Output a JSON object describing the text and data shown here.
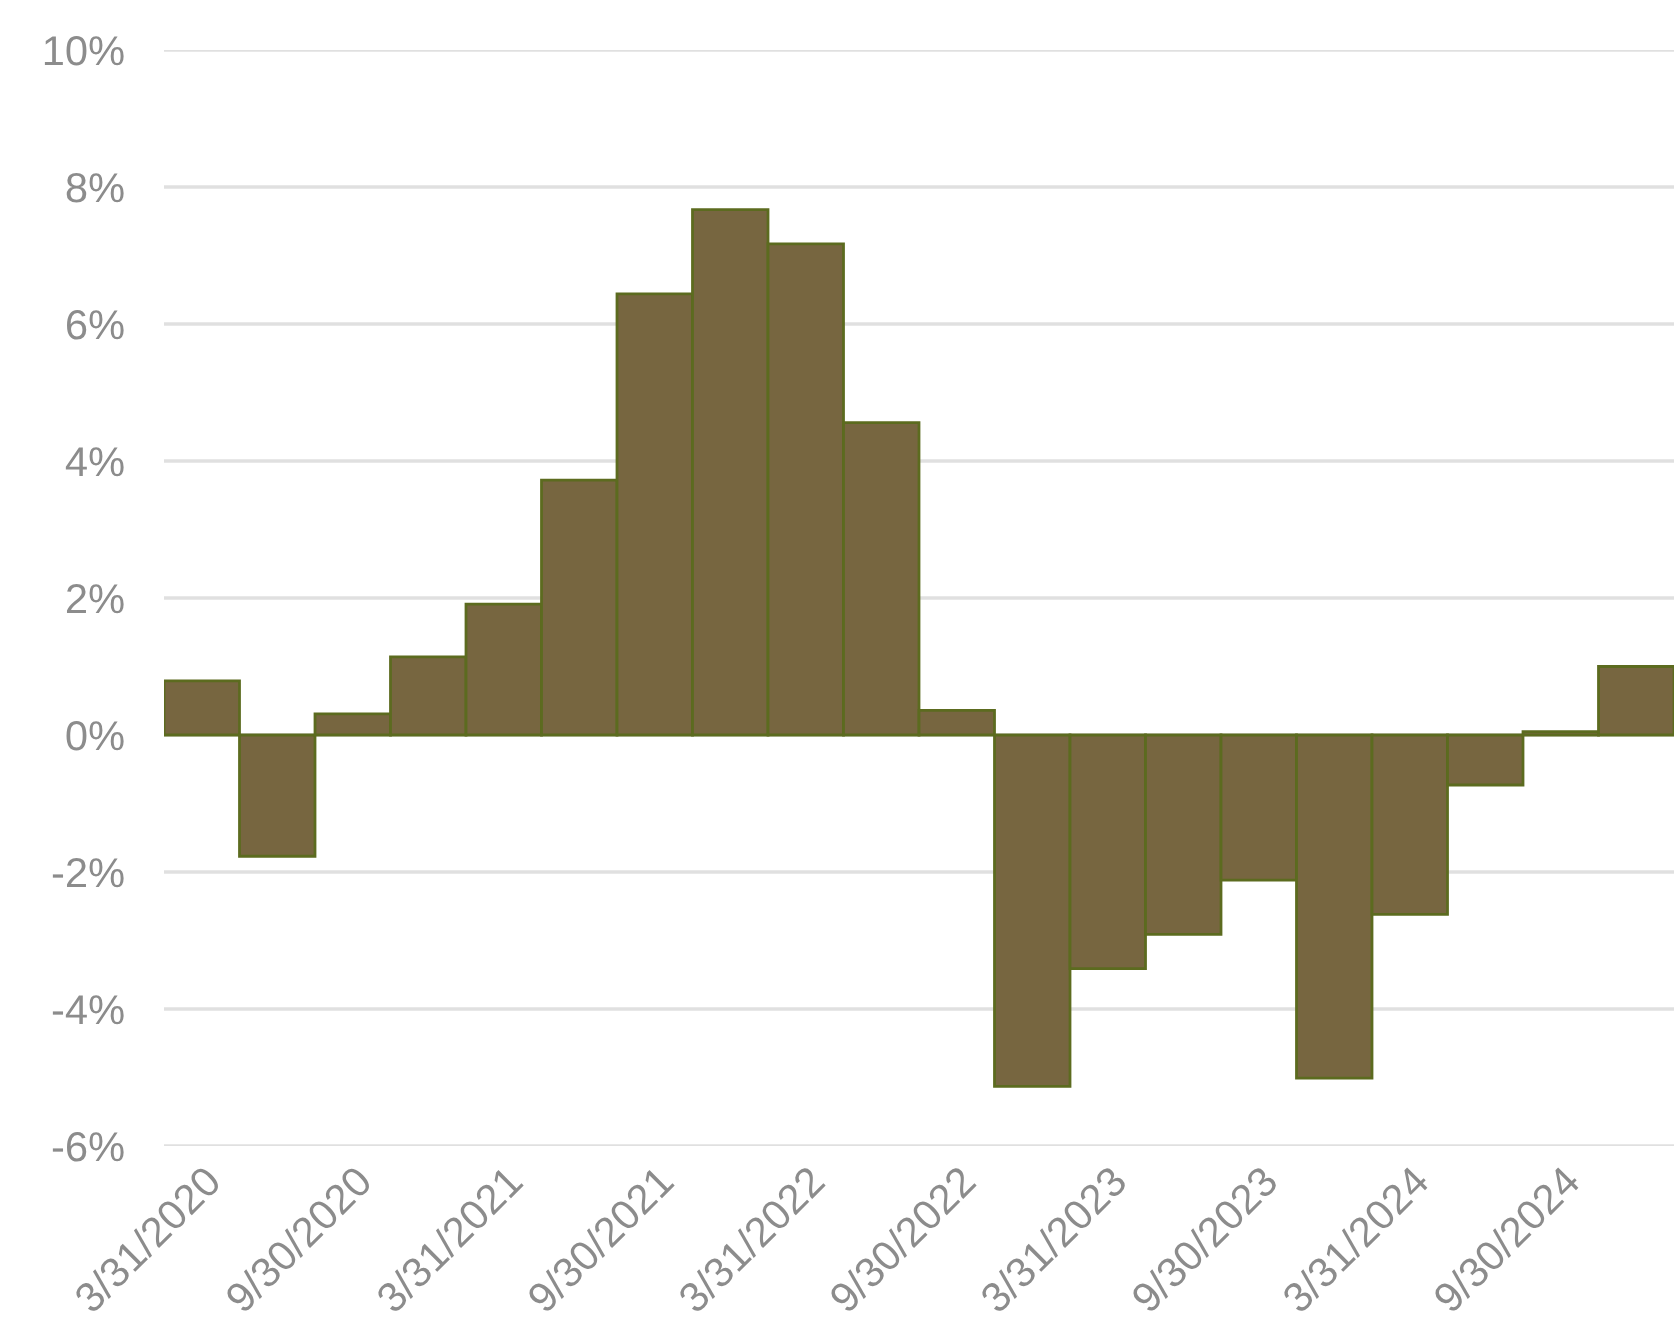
{
  "chart_data": {
    "type": "bar",
    "categories": [
      "3/31/2020",
      null,
      "9/30/2020",
      null,
      "3/31/2021",
      null,
      "9/30/2021",
      null,
      "3/31/2022",
      null,
      "9/30/2022",
      null,
      "3/31/2023",
      null,
      "9/30/2023",
      null,
      "3/31/2024",
      null,
      "9/30/2024",
      null
    ],
    "series": [
      {
        "color": "#776640",
        "values": [
          0.79,
          -1.77,
          0.31,
          1.14,
          1.91,
          3.72,
          6.44,
          7.67,
          7.17,
          4.56,
          0.36,
          -5.13,
          -3.41,
          -2.91,
          -2.12,
          -5.01,
          -2.62,
          -0.73,
          0.05,
          1.0
        ]
      }
    ],
    "ylim": [
      -6,
      10
    ],
    "yticks": [
      {
        "value": -6,
        "label": "-6%"
      },
      {
        "value": -4,
        "label": "-4%"
      },
      {
        "value": -2,
        "label": "-2%"
      },
      {
        "value": 0,
        "label": "0%"
      },
      {
        "value": 2,
        "label": "2%"
      },
      {
        "value": 4,
        "label": "4%"
      },
      {
        "value": 6,
        "label": "6%"
      },
      {
        "value": 8,
        "label": "8%"
      },
      {
        "value": 10,
        "label": "10%"
      }
    ],
    "grid": "y"
  }
}
